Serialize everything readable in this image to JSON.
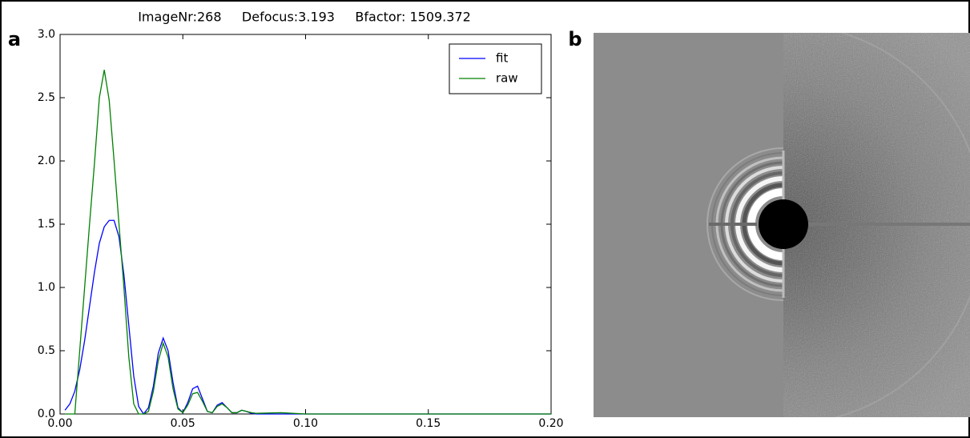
{
  "chart_data": {
    "type": "line",
    "title": "ImageNr:268     Defocus:3.193     Bfactor: 1509.372",
    "panel_label": "a",
    "x": [
      0.002,
      0.004,
      0.006,
      0.008,
      0.01,
      0.012,
      0.014,
      0.016,
      0.018,
      0.02,
      0.022,
      0.024,
      0.026,
      0.028,
      0.03,
      0.032,
      0.034,
      0.036,
      0.038,
      0.04,
      0.042,
      0.044,
      0.046,
      0.048,
      0.05,
      0.052,
      0.054,
      0.056,
      0.058,
      0.06,
      0.062,
      0.064,
      0.066,
      0.068,
      0.07,
      0.072,
      0.074,
      0.076,
      0.078,
      0.08,
      0.09,
      0.1,
      0.15,
      0.2
    ],
    "series": [
      {
        "name": "fit",
        "color": "#0000ff",
        "values": [
          0.03,
          0.08,
          0.18,
          0.35,
          0.58,
          0.85,
          1.12,
          1.35,
          1.48,
          1.53,
          1.53,
          1.4,
          1.1,
          0.7,
          0.3,
          0.06,
          0.0,
          0.05,
          0.22,
          0.48,
          0.6,
          0.5,
          0.25,
          0.05,
          0.01,
          0.09,
          0.2,
          0.22,
          0.12,
          0.02,
          0.01,
          0.07,
          0.09,
          0.05,
          0.01,
          0.01,
          0.03,
          0.02,
          0.005,
          0,
          0,
          0,
          0,
          0
        ]
      },
      {
        "name": "raw",
        "color": "#008000",
        "values": [
          0,
          0,
          0,
          0.5,
          1.0,
          1.5,
          1.98,
          2.5,
          2.72,
          2.48,
          2.0,
          1.5,
          1.0,
          0.45,
          0.08,
          0,
          0,
          0.02,
          0.18,
          0.42,
          0.56,
          0.45,
          0.2,
          0.04,
          0.01,
          0.07,
          0.16,
          0.17,
          0.1,
          0.02,
          0.01,
          0.06,
          0.08,
          0.05,
          0.01,
          0.01,
          0.03,
          0.02,
          0.01,
          0.005,
          0.01,
          0,
          0,
          0
        ]
      }
    ],
    "xlim": [
      0,
      0.2
    ],
    "xticks": [
      {
        "value": 0,
        "label": "0.00"
      },
      {
        "value": 0.05,
        "label": "0.05"
      },
      {
        "value": 0.1,
        "label": "0.10"
      },
      {
        "value": 0.15,
        "label": "0.15"
      },
      {
        "value": 0.2,
        "label": "0.20"
      }
    ],
    "ylim": [
      0,
      3
    ],
    "yticks": [
      {
        "value": 0,
        "label": "0.0"
      },
      {
        "value": 0.5,
        "label": "0.5"
      },
      {
        "value": 1,
        "label": "1.0"
      },
      {
        "value": 1.5,
        "label": "1.5"
      },
      {
        "value": 2,
        "label": "2.0"
      },
      {
        "value": 2.5,
        "label": "2.5"
      },
      {
        "value": 3,
        "label": "3.0"
      }
    ],
    "legend": "upper right",
    "grid": false
  },
  "image_panel": {
    "label": "b"
  }
}
